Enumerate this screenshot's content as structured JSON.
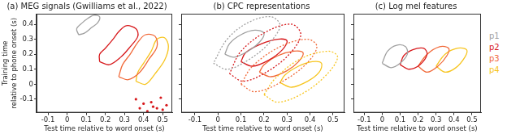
{
  "chart_data": [
    {
      "type": "line",
      "title": "(a) MEG signals (Gwilliams et al., 2022)",
      "x_label": "Test time relative to word onset (s)",
      "y_label": [
        "Training time",
        "relative to phone onset (s)"
      ],
      "xlim": [
        -0.16,
        0.55
      ],
      "xticks": [
        -0.1,
        0,
        0.1,
        0.2,
        0.3,
        0.4,
        0.5
      ],
      "ylim": [
        -0.19,
        0.47
      ],
      "yticks": [
        -0.1,
        0,
        0.1,
        0.2,
        0.3,
        0.4
      ],
      "grid": false,
      "series": [
        {
          "name": "p1",
          "color": "#a0a0a0",
          "line_style": "solid",
          "x": [
            0.06,
            0.09,
            0.13,
            0.16,
            0.17,
            0.14,
            0.11,
            0.08,
            0.05,
            0.06
          ],
          "values": [
            0.33,
            0.34,
            0.38,
            0.41,
            0.45,
            0.46,
            0.44,
            0.41,
            0.37,
            0.33
          ]
        },
        {
          "name": "p2",
          "color": "#d7191c",
          "line_style": "solid",
          "x": [
            0.17,
            0.22,
            0.28,
            0.33,
            0.37,
            0.36,
            0.31,
            0.27,
            0.24,
            0.2,
            0.17,
            0.17
          ],
          "values": [
            0.15,
            0.13,
            0.18,
            0.25,
            0.32,
            0.37,
            0.39,
            0.35,
            0.3,
            0.24,
            0.2,
            0.15
          ]
        },
        {
          "name": "p3",
          "color": "#f16a3a",
          "line_style": "solid",
          "x": [
            0.27,
            0.32,
            0.38,
            0.43,
            0.47,
            0.46,
            0.41,
            0.37,
            0.33,
            0.29,
            0.27
          ],
          "values": [
            0.05,
            0.03,
            0.08,
            0.17,
            0.25,
            0.32,
            0.33,
            0.28,
            0.2,
            0.13,
            0.05
          ]
        },
        {
          "name": "p4",
          "color": "#f7c520",
          "line_style": "solid",
          "x": [
            0.36,
            0.41,
            0.46,
            0.51,
            0.53,
            0.51,
            0.47,
            0.44,
            0.4,
            0.37,
            0.36
          ],
          "values": [
            0.02,
            0.0,
            0.07,
            0.16,
            0.25,
            0.31,
            0.3,
            0.22,
            0.14,
            0.08,
            0.02
          ]
        },
        {
          "name": "p2",
          "color": "#d7191c",
          "type": "scatter",
          "marker": "circle",
          "x": [
            0.36,
            0.4,
            0.44,
            0.47,
            0.5,
            0.52,
            0.49,
            0.45,
            0.42,
            0.38
          ],
          "values": [
            -0.1,
            -0.13,
            -0.12,
            -0.16,
            -0.17,
            -0.14,
            -0.09,
            -0.15,
            -0.18,
            -0.16
          ]
        }
      ]
    },
    {
      "type": "line",
      "title": "(b) CPC representations",
      "x_label": "Test time relative to word onset (s)",
      "xlim": [
        -0.16,
        0.55
      ],
      "xticks": [
        -0.1,
        0,
        0.1,
        0.2,
        0.3,
        0.4,
        0.5
      ],
      "ylim": [
        -0.19,
        0.47
      ],
      "yticks": [
        -0.1,
        0,
        0.1,
        0.2,
        0.3,
        0.4
      ],
      "grid": false,
      "tick_labels": "x",
      "series": [
        {
          "name": "p1",
          "color": "#a0a0a0",
          "line_style": "dotted",
          "x": [
            -0.02,
            0.04,
            0.13,
            0.22,
            0.27,
            0.23,
            0.13,
            0.04,
            -0.02
          ],
          "values": [
            0.14,
            0.1,
            0.16,
            0.27,
            0.39,
            0.45,
            0.41,
            0.3,
            0.14
          ]
        },
        {
          "name": "p2",
          "color": "#d7191c",
          "line_style": "dotted",
          "x": [
            0.05,
            0.11,
            0.21,
            0.31,
            0.36,
            0.32,
            0.21,
            0.1,
            0.05
          ],
          "values": [
            0.07,
            0.02,
            0.08,
            0.2,
            0.33,
            0.4,
            0.35,
            0.22,
            0.07
          ]
        },
        {
          "name": "p3",
          "color": "#f16a3a",
          "line_style": "dotted",
          "x": [
            0.1,
            0.16,
            0.27,
            0.38,
            0.43,
            0.39,
            0.27,
            0.15,
            0.1
          ],
          "values": [
            0.0,
            -0.05,
            0.01,
            0.13,
            0.25,
            0.3,
            0.25,
            0.12,
            0.0
          ]
        },
        {
          "name": "p4",
          "color": "#f7c520",
          "line_style": "dotted",
          "x": [
            0.2,
            0.26,
            0.37,
            0.47,
            0.52,
            0.48,
            0.36,
            0.25,
            0.2
          ],
          "values": [
            -0.07,
            -0.12,
            -0.06,
            0.06,
            0.18,
            0.22,
            0.17,
            0.04,
            -0.07
          ]
        },
        {
          "name": "p1",
          "color": "#a0a0a0",
          "line_style": "solid",
          "x": [
            0.03,
            0.07,
            0.13,
            0.18,
            0.2,
            0.16,
            0.1,
            0.05,
            0.03
          ],
          "values": [
            0.2,
            0.18,
            0.22,
            0.28,
            0.34,
            0.36,
            0.33,
            0.27,
            0.2
          ]
        },
        {
          "name": "p2",
          "color": "#d7191c",
          "line_style": "solid",
          "x": [
            0.1,
            0.15,
            0.22,
            0.28,
            0.3,
            0.26,
            0.19,
            0.12,
            0.1
          ],
          "values": [
            0.15,
            0.12,
            0.16,
            0.23,
            0.29,
            0.3,
            0.27,
            0.21,
            0.15
          ]
        },
        {
          "name": "p3",
          "color": "#f16a3a",
          "line_style": "solid",
          "x": [
            0.18,
            0.23,
            0.3,
            0.35,
            0.37,
            0.33,
            0.26,
            0.2,
            0.18
          ],
          "values": [
            0.08,
            0.05,
            0.09,
            0.15,
            0.21,
            0.22,
            0.19,
            0.13,
            0.08
          ]
        },
        {
          "name": "p4",
          "color": "#f7c520",
          "line_style": "solid",
          "x": [
            0.27,
            0.32,
            0.39,
            0.44,
            0.45,
            0.41,
            0.35,
            0.29,
            0.27
          ],
          "values": [
            0.01,
            -0.02,
            0.02,
            0.08,
            0.14,
            0.15,
            0.12,
            0.06,
            0.01
          ]
        }
      ]
    },
    {
      "type": "line",
      "title": "(c) Log mel features",
      "x_label": "Test time relative to word onset (s)",
      "xlim": [
        -0.16,
        0.55
      ],
      "xticks": [
        -0.1,
        0,
        0.1,
        0.2,
        0.3,
        0.4,
        0.5
      ],
      "ylim": [
        -0.19,
        0.47
      ],
      "yticks": [
        -0.1,
        0,
        0.1,
        0.2,
        0.3,
        0.4
      ],
      "grid": false,
      "tick_labels": "x",
      "legend": "right",
      "series": [
        {
          "name": "p1",
          "color": "#a0a0a0",
          "line_style": "solid",
          "x": [
            0.0,
            0.05,
            0.1,
            0.14,
            0.13,
            0.08,
            0.03,
            0.0
          ],
          "values": [
            0.14,
            0.11,
            0.14,
            0.2,
            0.25,
            0.26,
            0.22,
            0.14
          ]
        },
        {
          "name": "p2",
          "color": "#d7191c",
          "line_style": "solid",
          "x": [
            0.1,
            0.15,
            0.21,
            0.25,
            0.23,
            0.17,
            0.12,
            0.1
          ],
          "values": [
            0.13,
            0.1,
            0.13,
            0.2,
            0.24,
            0.23,
            0.19,
            0.13
          ]
        },
        {
          "name": "p3",
          "color": "#f16a3a",
          "line_style": "solid",
          "x": [
            0.2,
            0.25,
            0.31,
            0.36,
            0.37,
            0.32,
            0.25,
            0.2
          ],
          "values": [
            0.12,
            0.08,
            0.12,
            0.19,
            0.24,
            0.25,
            0.2,
            0.12
          ]
        },
        {
          "name": "p4",
          "color": "#f7c520",
          "line_style": "solid",
          "x": [
            0.3,
            0.35,
            0.41,
            0.46,
            0.47,
            0.42,
            0.35,
            0.3
          ],
          "values": [
            0.12,
            0.08,
            0.11,
            0.18,
            0.23,
            0.24,
            0.2,
            0.12
          ]
        }
      ]
    }
  ]
}
